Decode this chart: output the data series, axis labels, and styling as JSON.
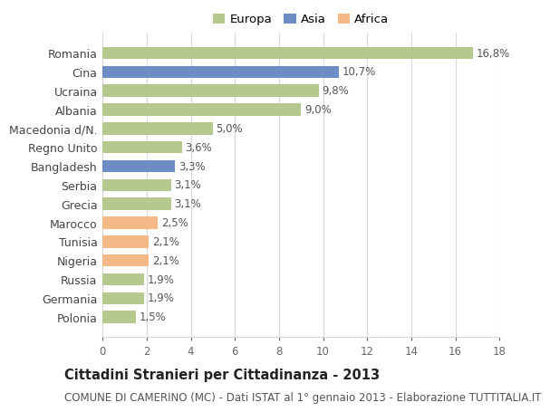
{
  "countries": [
    "Romania",
    "Cina",
    "Ucraina",
    "Albania",
    "Macedonia d/N.",
    "Regno Unito",
    "Bangladesh",
    "Serbia",
    "Grecia",
    "Marocco",
    "Tunisia",
    "Nigeria",
    "Russia",
    "Germania",
    "Polonia"
  ],
  "values": [
    16.8,
    10.7,
    9.8,
    9.0,
    5.0,
    3.6,
    3.3,
    3.1,
    3.1,
    2.5,
    2.1,
    2.1,
    1.9,
    1.9,
    1.5
  ],
  "labels": [
    "16,8%",
    "10,7%",
    "9,8%",
    "9,0%",
    "5,0%",
    "3,6%",
    "3,3%",
    "3,1%",
    "3,1%",
    "2,5%",
    "2,1%",
    "2,1%",
    "1,9%",
    "1,9%",
    "1,5%"
  ],
  "continents": [
    "Europa",
    "Asia",
    "Europa",
    "Europa",
    "Europa",
    "Europa",
    "Asia",
    "Europa",
    "Europa",
    "Africa",
    "Africa",
    "Africa",
    "Europa",
    "Europa",
    "Europa"
  ],
  "colors": {
    "Europa": "#b5c98e",
    "Asia": "#6b8ec4",
    "Africa": "#f5b887"
  },
  "xlim": [
    0,
    18
  ],
  "xticks": [
    0,
    2,
    4,
    6,
    8,
    10,
    12,
    14,
    16,
    18
  ],
  "title": "Cittadini Stranieri per Cittadinanza - 2013",
  "subtitle": "COMUNE DI CAMERINO (MC) - Dati ISTAT al 1° gennaio 2013 - Elaborazione TUTTITALIA.IT",
  "background_color": "#ffffff",
  "grid_color": "#d8d8d8",
  "bar_height": 0.65,
  "label_fontsize": 8.5,
  "ylabel_fontsize": 9,
  "xlabel_fontsize": 8.5,
  "title_fontsize": 10.5,
  "subtitle_fontsize": 8.5,
  "legend_items": [
    "Europa",
    "Asia",
    "Africa"
  ],
  "legend_colors": [
    "#b5c98e",
    "#6b8ec4",
    "#f5b887"
  ]
}
